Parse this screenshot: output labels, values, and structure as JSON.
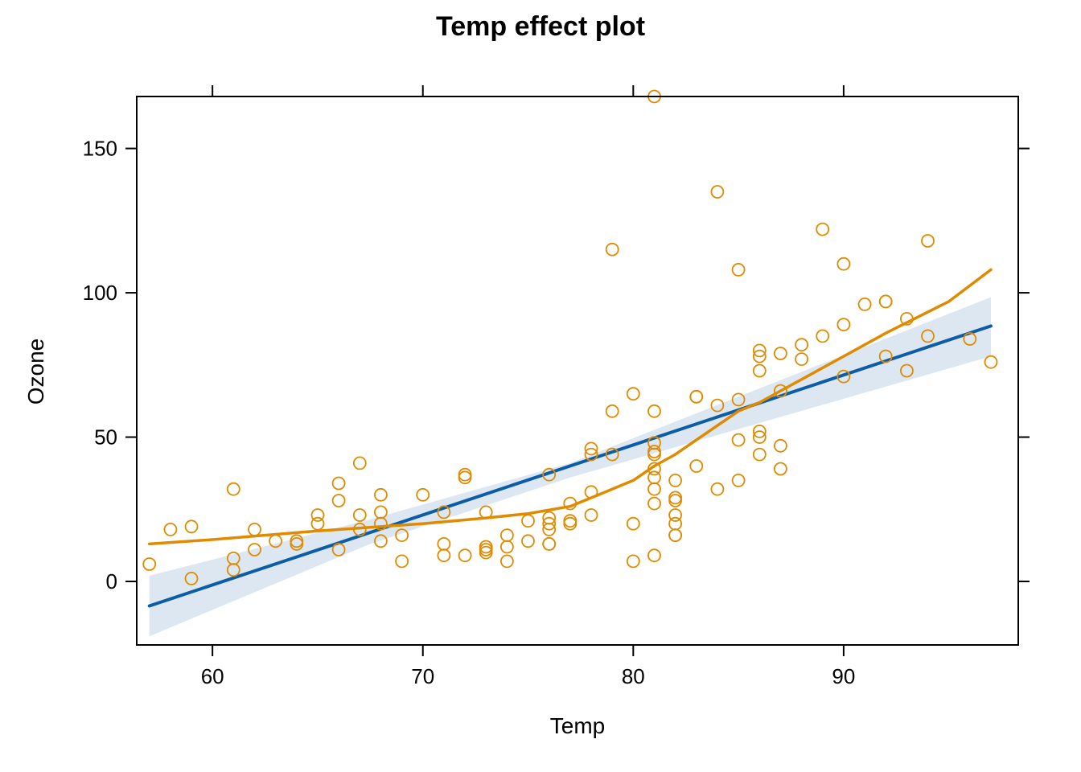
{
  "chart_data": {
    "type": "scatter",
    "title": "Temp effect plot",
    "xlabel": "Temp",
    "ylabel": "Ozone",
    "xlim": [
      56.4,
      98.3
    ],
    "ylim": [
      -22,
      168
    ],
    "x_ticks": [
      60,
      70,
      80,
      90
    ],
    "y_ticks": [
      0,
      50,
      100,
      150
    ],
    "tick_labels": {
      "x": [
        "60",
        "70",
        "80",
        "90"
      ],
      "y": [
        "0",
        "50",
        "100",
        "150"
      ]
    },
    "grid": false,
    "colors": {
      "points": "#E08A00",
      "smooth": "#E08A00",
      "fit": "#0C5DA5",
      "band": "#DCE7F2"
    },
    "points": [
      [
        57,
        6
      ],
      [
        58,
        18
      ],
      [
        59,
        19
      ],
      [
        59,
        1
      ],
      [
        61,
        32
      ],
      [
        61,
        8
      ],
      [
        61,
        4
      ],
      [
        62,
        18
      ],
      [
        62,
        11
      ],
      [
        63,
        14
      ],
      [
        64,
        14
      ],
      [
        64,
        13
      ],
      [
        65,
        23
      ],
      [
        65,
        20
      ],
      [
        66,
        34
      ],
      [
        66,
        28
      ],
      [
        66,
        11
      ],
      [
        67,
        41
      ],
      [
        67,
        23
      ],
      [
        67,
        18
      ],
      [
        68,
        30
      ],
      [
        68,
        24
      ],
      [
        68,
        20
      ],
      [
        68,
        14
      ],
      [
        69,
        16
      ],
      [
        69,
        7
      ],
      [
        70,
        30
      ],
      [
        71,
        24
      ],
      [
        71,
        13
      ],
      [
        71,
        9
      ],
      [
        72,
        37
      ],
      [
        72,
        36
      ],
      [
        72,
        9
      ],
      [
        73,
        24
      ],
      [
        73,
        12
      ],
      [
        73,
        11
      ],
      [
        73,
        10
      ],
      [
        74,
        16
      ],
      [
        74,
        12
      ],
      [
        74,
        7
      ],
      [
        75,
        21
      ],
      [
        75,
        14
      ],
      [
        76,
        37
      ],
      [
        76,
        22
      ],
      [
        76,
        20
      ],
      [
        76,
        18
      ],
      [
        76,
        13
      ],
      [
        76,
        13
      ],
      [
        77,
        27
      ],
      [
        77,
        21
      ],
      [
        77,
        20
      ],
      [
        78,
        46
      ],
      [
        78,
        44
      ],
      [
        78,
        31
      ],
      [
        78,
        23
      ],
      [
        79,
        115
      ],
      [
        79,
        59
      ],
      [
        79,
        44
      ],
      [
        80,
        65
      ],
      [
        80,
        20
      ],
      [
        80,
        7
      ],
      [
        81,
        168
      ],
      [
        81,
        59
      ],
      [
        81,
        48
      ],
      [
        81,
        45
      ],
      [
        81,
        44
      ],
      [
        81,
        39
      ],
      [
        81,
        36
      ],
      [
        81,
        32
      ],
      [
        81,
        27
      ],
      [
        81,
        9
      ],
      [
        82,
        35
      ],
      [
        82,
        29
      ],
      [
        82,
        28
      ],
      [
        82,
        23
      ],
      [
        82,
        20
      ],
      [
        82,
        16
      ],
      [
        82,
        16
      ],
      [
        83,
        64
      ],
      [
        83,
        64
      ],
      [
        83,
        40
      ],
      [
        84,
        135
      ],
      [
        84,
        61
      ],
      [
        84,
        32
      ],
      [
        85,
        108
      ],
      [
        85,
        63
      ],
      [
        85,
        49
      ],
      [
        85,
        35
      ],
      [
        86,
        80
      ],
      [
        86,
        78
      ],
      [
        86,
        73
      ],
      [
        86,
        52
      ],
      [
        86,
        50
      ],
      [
        86,
        44
      ],
      [
        87,
        79
      ],
      [
        87,
        66
      ],
      [
        87,
        47
      ],
      [
        87,
        39
      ],
      [
        88,
        82
      ],
      [
        88,
        77
      ],
      [
        89,
        122
      ],
      [
        89,
        85
      ],
      [
        90,
        110
      ],
      [
        90,
        89
      ],
      [
        90,
        71
      ],
      [
        91,
        96
      ],
      [
        92,
        97
      ],
      [
        92,
        97
      ],
      [
        92,
        78
      ],
      [
        93,
        91
      ],
      [
        93,
        73
      ],
      [
        94,
        118
      ],
      [
        94,
        85
      ],
      [
        96,
        84
      ],
      [
        97,
        76
      ]
    ],
    "series": [
      {
        "type": "line",
        "role": "fit",
        "x": [
          57,
          97
        ],
        "y": [
          -8.5,
          88.5
        ]
      },
      {
        "type": "band",
        "role": "confidence",
        "x": [
          57,
          67.5,
          77,
          97
        ],
        "lower": [
          -19,
          13,
          36,
          78
        ],
        "upper": [
          2,
          21.5,
          41,
          98.5
        ]
      },
      {
        "type": "line",
        "role": "smooth",
        "x": [
          57,
          60,
          65,
          70,
          73,
          75,
          77,
          79,
          80,
          81,
          82,
          83,
          84,
          85,
          86,
          87,
          88,
          90,
          92,
          95,
          97
        ],
        "y": [
          13,
          14.5,
          17.5,
          20,
          22,
          23.5,
          26,
          32,
          35,
          40,
          44,
          49,
          54,
          59,
          62,
          66,
          70,
          78,
          86,
          97,
          108
        ]
      }
    ]
  }
}
